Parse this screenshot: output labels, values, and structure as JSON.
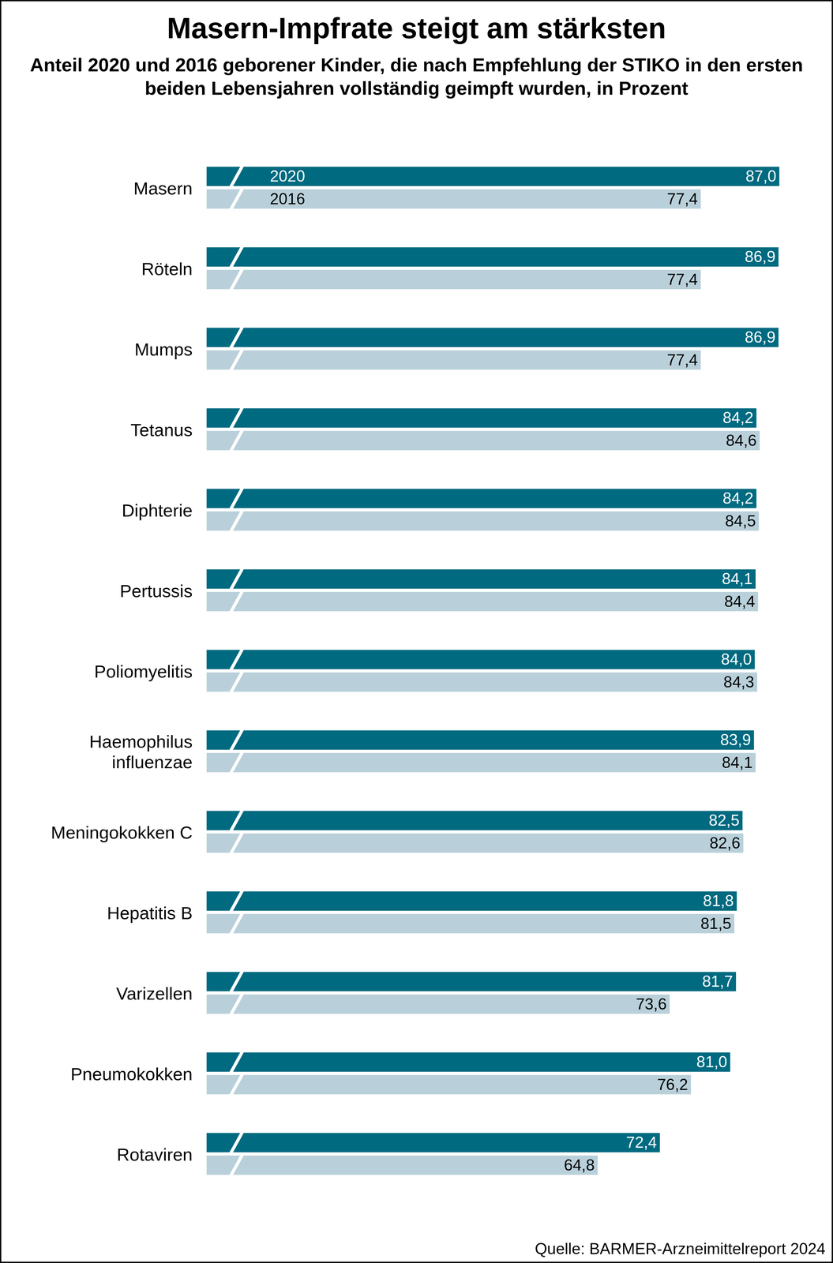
{
  "chart_data": {
    "type": "bar",
    "orientation": "horizontal",
    "title": "Masern-Impfrate steigt am stärksten",
    "subtitle": "Anteil 2020 und 2016 geborener Kinder, die nach Empfehlung der STIKO in den ersten beiden Lebensjahren vollständig geimpft wurden, in Prozent",
    "source": "Quelle: BARMER-Arzneimittelreport 2024",
    "categories": [
      "Masern",
      "Röteln",
      "Mumps",
      "Tetanus",
      "Diphterie",
      "Pertussis",
      "Poliomyelitis",
      "Haemophilus influenzae",
      "Meningokokken C",
      "Hepatitis B",
      "Varizellen",
      "Pneumokokken",
      "Rotaviren"
    ],
    "series": [
      {
        "name": "2020",
        "color": "#006a80",
        "values": [
          87.0,
          86.9,
          86.9,
          84.2,
          84.2,
          84.1,
          84.0,
          83.9,
          82.5,
          81.8,
          81.7,
          81.0,
          72.4
        ],
        "value_labels": [
          "87,0",
          "86,9",
          "86,9",
          "84,2",
          "84,2",
          "84,1",
          "84,0",
          "83,9",
          "82,5",
          "81,8",
          "81,7",
          "81,0",
          "72,4"
        ]
      },
      {
        "name": "2016",
        "color": "#b9d0da",
        "values": [
          77.4,
          77.4,
          77.4,
          84.6,
          84.5,
          84.4,
          84.3,
          84.1,
          82.6,
          81.5,
          73.6,
          76.2,
          64.8
        ],
        "value_labels": [
          "77,4",
          "77,4",
          "77,4",
          "84,6",
          "84,5",
          "84,4",
          "84,3",
          "84,1",
          "82,6",
          "81,5",
          "73,6",
          "76,2",
          "64,8"
        ]
      }
    ],
    "xlim": [
      17,
      88
    ],
    "tick_labels": false,
    "data_labels": true,
    "grid": false
  }
}
